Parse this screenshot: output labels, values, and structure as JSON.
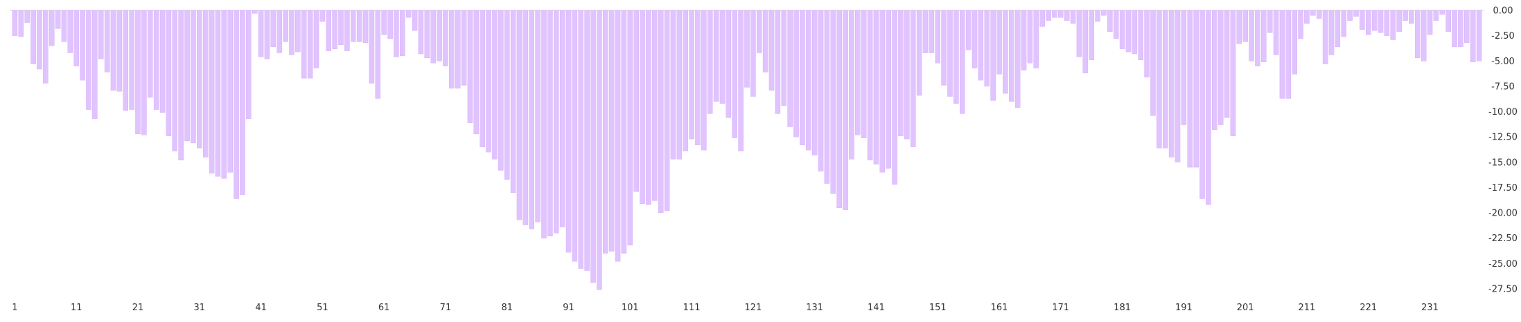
{
  "chart_data": {
    "type": "bar",
    "bar_color": "#e1c4ff",
    "bar_edge_color": "#cfa8f7",
    "baseline_color": "#c9c9c9",
    "x_start": 1,
    "x_tick_labels": [
      "1",
      "11",
      "21",
      "31",
      "41",
      "51",
      "61",
      "71",
      "81",
      "91",
      "101",
      "111",
      "121",
      "131",
      "141",
      "151",
      "161",
      "171",
      "181",
      "191",
      "201",
      "211",
      "221",
      "231"
    ],
    "y_tick_labels": [
      "0.00",
      "-2.50",
      "-5.00",
      "-7.50",
      "-10.00",
      "-12.50",
      "-15.00",
      "-17.50",
      "-20.00",
      "-22.50",
      "-25.00",
      "-27.50"
    ],
    "ylim": [
      -28.5,
      0
    ],
    "grid": false,
    "values": [
      -2.5,
      -2.6,
      -1.2,
      -5.3,
      -5.8,
      -7.2,
      -3.5,
      -1.8,
      -3.1,
      -4.2,
      -5.5,
      -6.9,
      -9.8,
      -10.7,
      -4.8,
      -6.1,
      -7.9,
      -8.0,
      -9.9,
      -9.8,
      -12.2,
      -12.3,
      -8.6,
      -9.8,
      -10.1,
      -12.4,
      -13.9,
      -14.8,
      -12.9,
      -13.1,
      -13.6,
      -14.5,
      -16.1,
      -16.4,
      -16.6,
      -16.0,
      -18.6,
      -18.2,
      -10.7,
      -0.3,
      -4.6,
      -4.8,
      -3.6,
      -4.2,
      -3.1,
      -4.4,
      -4.1,
      -6.7,
      -6.7,
      -5.7,
      -1.1,
      -4.0,
      -3.8,
      -3.4,
      -4.0,
      -3.1,
      -3.1,
      -3.2,
      -7.2,
      -8.7,
      -2.4,
      -2.8,
      -4.6,
      -4.5,
      -0.7,
      -2.0,
      -4.3,
      -4.7,
      -5.2,
      -5.0,
      -5.5,
      -7.7,
      -7.7,
      -7.4,
      -11.1,
      -12.2,
      -13.5,
      -14.0,
      -14.7,
      -15.8,
      -16.7,
      -18.0,
      -20.7,
      -21.2,
      -21.6,
      -20.9,
      -22.5,
      -22.3,
      -22.0,
      -21.4,
      -23.9,
      -24.8,
      -25.5,
      -25.7,
      -26.9,
      -27.6,
      -24.0,
      -23.8,
      -24.8,
      -24.0,
      -23.2,
      -17.9,
      -19.1,
      -19.2,
      -18.8,
      -20.0,
      -19.8,
      -14.7,
      -14.7,
      -13.9,
      -12.7,
      -13.3,
      -13.8,
      -10.2,
      -9.0,
      -9.2,
      -10.6,
      -12.6,
      -13.9,
      -7.6,
      -8.5,
      -4.2,
      -6.1,
      -7.9,
      -10.2,
      -9.4,
      -11.5,
      -12.5,
      -13.3,
      -13.8,
      -14.3,
      -15.9,
      -17.1,
      -18.1,
      -19.5,
      -19.7,
      -14.7,
      -12.3,
      -12.6,
      -14.8,
      -15.2,
      -16.0,
      -15.6,
      -17.2,
      -12.4,
      -12.7,
      -13.5,
      -8.4,
      -4.2,
      -4.2,
      -5.2,
      -7.4,
      -8.5,
      -9.2,
      -10.2,
      -3.9,
      -5.7,
      -6.9,
      -7.5,
      -8.9,
      -6.3,
      -8.2,
      -9.0,
      -9.6,
      -5.9,
      -5.2,
      -5.7,
      -1.6,
      -1.0,
      -0.7,
      -0.7,
      -1.0,
      -1.3,
      -4.6,
      -6.2,
      -4.9,
      -1.1,
      -0.5,
      -2.1,
      -2.8,
      -3.8,
      -4.1,
      -4.3,
      -4.9,
      -6.6,
      -10.4,
      -13.6,
      -13.6,
      -14.5,
      -15.0,
      -11.3,
      -15.5,
      -15.5,
      -18.6,
      -19.2,
      -11.8,
      -11.3,
      -10.6,
      -12.4,
      -3.3,
      -3.1,
      -5.0,
      -5.5,
      -5.1,
      -2.2,
      -4.4,
      -8.7,
      -8.7,
      -6.3,
      -2.8,
      -1.3,
      -0.5,
      -0.8,
      -5.3,
      -4.4,
      -3.6,
      -2.6,
      -1.0,
      -0.6,
      -1.9,
      -2.4,
      -2.0,
      -2.2,
      -2.5,
      -2.9,
      -2.1,
      -1.0,
      -1.3,
      -4.7,
      -5.0,
      -2.4,
      -1.0,
      -0.4,
      -2.1,
      -3.6,
      -3.6,
      -3.2,
      -5.1,
      -5.0
    ]
  }
}
